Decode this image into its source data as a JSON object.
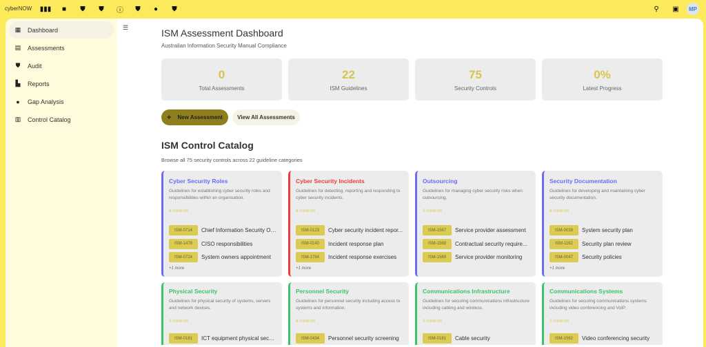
{
  "app": {
    "brand": "cyberNOW",
    "avatar": "MP",
    "top_icons": [
      "columns-icon",
      "folder-icon",
      "shield-check-icon",
      "shield-half-icon",
      "shield-info-icon",
      "shield-half-icon",
      "lightbulb-icon",
      "shield-half-icon"
    ]
  },
  "sidebar": {
    "items": [
      {
        "label": "Dashboard",
        "icon": "dashboard-icon"
      },
      {
        "label": "Assessments",
        "icon": "clipboard-icon"
      },
      {
        "label": "Audit",
        "icon": "shield-check-icon"
      },
      {
        "label": "Reports",
        "icon": "report-icon"
      },
      {
        "label": "Gap Analysis",
        "icon": "alert-icon"
      },
      {
        "label": "Control Catalog",
        "icon": "book-icon"
      }
    ]
  },
  "header": {
    "title": "ISM Assessment Dashboard",
    "subtitle": "Australian Information Security Manual Compliance"
  },
  "stats": [
    {
      "value": "0",
      "label": "Total Assessments"
    },
    {
      "value": "22",
      "label": "ISM Guidelines"
    },
    {
      "value": "75",
      "label": "Security Controls"
    },
    {
      "value": "0%",
      "label": "Latest Progress"
    }
  ],
  "actions": {
    "new": "New Assessment",
    "new_icon": "+",
    "view_all": "View All Assessments"
  },
  "catalog": {
    "title": "ISM Control Catalog",
    "subtitle": "Browse all 75 security controls across 22 guideline categories",
    "cards": [
      {
        "title": "Cyber Security Roles",
        "color": "#6b6bf5",
        "desc": "Guidelines for establishing cyber security roles and responsibilities within an organisation.",
        "count": "4 controls",
        "controls": [
          {
            "id": "ISM-0714",
            "name": "Chief Information Security Of..."
          },
          {
            "id": "ISM-1478",
            "name": "CISO responsibilities"
          },
          {
            "id": "ISM-0724",
            "name": "System owners appointment"
          }
        ],
        "more": "+1 more"
      },
      {
        "title": "Cyber Security Incidents",
        "color": "#ee3b3b",
        "desc": "Guidelines for detecting, reporting and responding to cyber security incidents.",
        "count": "4 controls",
        "controls": [
          {
            "id": "ISM-0123",
            "name": "Cyber security incident repor..."
          },
          {
            "id": "ISM-0140",
            "name": "Incident response plan"
          },
          {
            "id": "ISM-1784",
            "name": "Incident response exercises"
          }
        ],
        "more": "+1 more"
      },
      {
        "title": "Outsourcing",
        "color": "#6b6bf5",
        "desc": "Guidelines for managing cyber security risks when outsourcing.",
        "count": "3 controls",
        "controls": [
          {
            "id": "ISM-1567",
            "name": "Service provider assessment"
          },
          {
            "id": "ISM-1568",
            "name": "Contractual security require..."
          },
          {
            "id": "ISM-1569",
            "name": "Service provider monitoring"
          }
        ],
        "more": ""
      },
      {
        "title": "Security Documentation",
        "color": "#6b6bf5",
        "desc": "Guidelines for developing and maintaining cyber security documentation.",
        "count": "4 controls",
        "controls": [
          {
            "id": "ISM-0039",
            "name": "System security plan"
          },
          {
            "id": "ISM-1162",
            "name": "Security plan review"
          },
          {
            "id": "ISM-0047",
            "name": "Security policies"
          }
        ],
        "more": "+1 more"
      },
      {
        "title": "Physical Security",
        "color": "#3cc46a",
        "desc": "Guidelines for physical security of systems, servers and network devices.",
        "count": "3 controls",
        "controls": [
          {
            "id": "ISM-0161",
            "name": "ICT equipment physical secu..."
          }
        ],
        "more": ""
      },
      {
        "title": "Personnel Security",
        "color": "#3cc46a",
        "desc": "Guidelines for personnel security including access to systems and information.",
        "count": "4 controls",
        "controls": [
          {
            "id": "ISM-0434",
            "name": "Personnel security screening"
          }
        ],
        "more": ""
      },
      {
        "title": "Communications Infrastructure",
        "color": "#3cc46a",
        "desc": "Guidelines for securing communications infrastructure including cabling and wireless.",
        "count": "3 controls",
        "controls": [
          {
            "id": "ISM-0181",
            "name": "Cable security"
          }
        ],
        "more": ""
      },
      {
        "title": "Communications Systems",
        "color": "#3cc46a",
        "desc": "Guidelines for securing communications systems including video conferencing and VoIP.",
        "count": "2 controls",
        "controls": [
          {
            "id": "ISM-1562",
            "name": "Video conferencing security"
          }
        ],
        "more": ""
      }
    ]
  }
}
